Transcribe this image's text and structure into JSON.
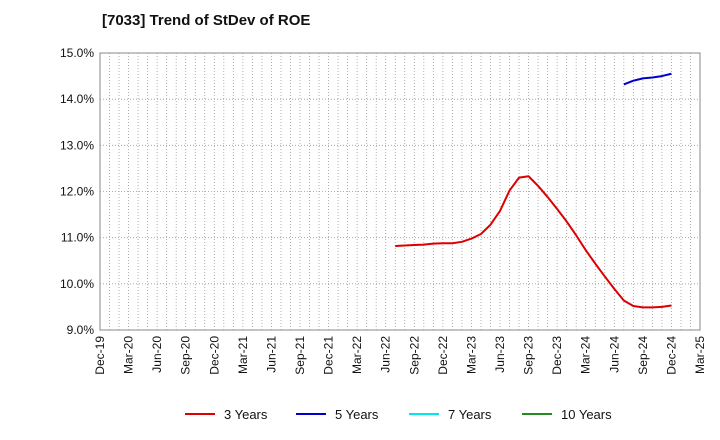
{
  "chart_data": {
    "type": "line",
    "title": "[7033]  Trend of StDev of ROE",
    "xlabel": "",
    "ylabel": "",
    "ylim": [
      9.0,
      15.0
    ],
    "yticks": [
      "15.0%",
      "14.0%",
      "13.0%",
      "12.0%",
      "11.0%",
      "10.0%",
      "9.0%"
    ],
    "yticks_values": [
      15.0,
      14.0,
      13.0,
      12.0,
      11.0,
      10.0,
      9.0
    ],
    "x_categories": [
      "Dec-19",
      "Mar-20",
      "Jun-20",
      "Sep-20",
      "Dec-20",
      "Mar-21",
      "Jun-21",
      "Sep-21",
      "Dec-21",
      "Mar-22",
      "Jun-22",
      "Sep-22",
      "Dec-22",
      "Mar-23",
      "Jun-23",
      "Sep-23",
      "Dec-23",
      "Mar-24",
      "Jun-24",
      "Sep-24",
      "Dec-24",
      "Mar-25"
    ],
    "grid": true,
    "legend_position": "bottom",
    "series": [
      {
        "name": "3 Years",
        "color": "#dd0000",
        "points": [
          [
            "Jul-22",
            10.82
          ],
          [
            "Aug-22",
            10.83
          ],
          [
            "Sep-22",
            10.84
          ],
          [
            "Oct-22",
            10.85
          ],
          [
            "Nov-22",
            10.87
          ],
          [
            "Dec-22",
            10.88
          ],
          [
            "Jan-23",
            10.88
          ],
          [
            "Feb-23",
            10.91
          ],
          [
            "Mar-23",
            10.98
          ],
          [
            "Apr-23",
            11.08
          ],
          [
            "May-23",
            11.28
          ],
          [
            "Jun-23",
            11.58
          ],
          [
            "Jul-23",
            12.02
          ],
          [
            "Aug-23",
            12.3
          ],
          [
            "Sep-23",
            12.33
          ],
          [
            "Oct-23",
            12.12
          ],
          [
            "Nov-23",
            11.88
          ],
          [
            "Dec-23",
            11.62
          ],
          [
            "Jan-24",
            11.35
          ],
          [
            "Feb-24",
            11.05
          ],
          [
            "Mar-24",
            10.73
          ],
          [
            "Apr-24",
            10.44
          ],
          [
            "May-24",
            10.16
          ],
          [
            "Jun-24",
            9.89
          ],
          [
            "Jul-24",
            9.64
          ],
          [
            "Aug-24",
            9.52
          ],
          [
            "Sep-24",
            9.49
          ],
          [
            "Oct-24",
            9.49
          ],
          [
            "Nov-24",
            9.5
          ],
          [
            "Dec-24",
            9.53
          ]
        ]
      },
      {
        "name": "5 Years",
        "color": "#0000cc",
        "points": [
          [
            "Jul-24",
            14.32
          ],
          [
            "Aug-24",
            14.4
          ],
          [
            "Sep-24",
            14.45
          ],
          [
            "Oct-24",
            14.47
          ],
          [
            "Nov-24",
            14.5
          ],
          [
            "Dec-24",
            14.55
          ]
        ]
      },
      {
        "name": "7 Years",
        "color": "#00e5ee",
        "points": []
      },
      {
        "name": "10 Years",
        "color": "#228b22",
        "points": []
      }
    ]
  }
}
